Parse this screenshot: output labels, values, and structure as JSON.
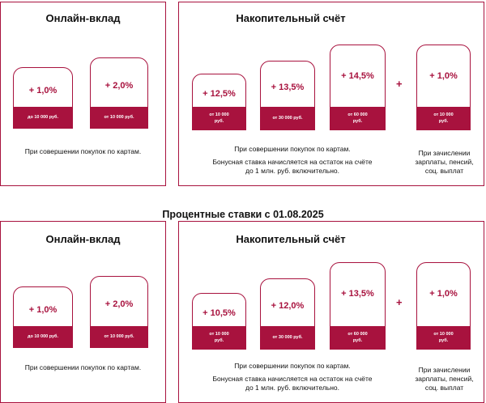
{
  "top": {
    "deposit": {
      "title": "Онлайн-вклад",
      "cards": [
        {
          "rate": "+ 1,0%",
          "band": "до 10 000 руб."
        },
        {
          "rate": "+ 2,0%",
          "band": "от 10 000 руб."
        }
      ],
      "note": "При совершении покупок по картам."
    },
    "savings": {
      "title": "Накопительный счёт",
      "cards": [
        {
          "rate": "+ 12,5%",
          "band_l1": "от 10 000",
          "band_l2": "руб."
        },
        {
          "rate": "+ 13,5%",
          "band_l1": "от 30 000 руб.",
          "band_l2": ""
        },
        {
          "rate": "+ 14,5%",
          "band_l1": "от 60 000",
          "band_l2": "руб."
        }
      ],
      "plus": "+",
      "extra_card": {
        "rate": "+ 1,0%",
        "band_l1": "от 10 000",
        "band_l2": "руб."
      },
      "note_l1": "При совершении покупок по картам.",
      "note_l2": "Бонусная ставка начисляется на остаток на счёте",
      "note_l3": "до 1 млн. руб. включительно.",
      "extra_note_l1": "При зачислении",
      "extra_note_l2": "зарплаты, пенсий,",
      "extra_note_l3": "соц. выплат"
    }
  },
  "heading": "Процентные ставки с 01.08.2025",
  "bottom": {
    "deposit": {
      "title": "Онлайн-вклад",
      "cards": [
        {
          "rate": "+ 1,0%",
          "band": "до 10 000 руб."
        },
        {
          "rate": "+ 2,0%",
          "band": "от 10 000 руб."
        }
      ],
      "note": "При совершении покупок по картам."
    },
    "savings": {
      "title": "Накопительный счёт",
      "cards": [
        {
          "rate": "+ 10,5%",
          "band_l1": "от 10 000",
          "band_l2": "руб."
        },
        {
          "rate": "+ 12,0%",
          "band_l1": "от 30 000 руб.",
          "band_l2": ""
        },
        {
          "rate": "+ 13,5%",
          "band_l1": "от 60 000",
          "band_l2": "руб."
        }
      ],
      "plus": "+",
      "extra_card": {
        "rate": "+ 1,0%",
        "band_l1": "от 10 000",
        "band_l2": "руб."
      },
      "note_l1": "При совершении покупок по картам.",
      "note_l2": "Бонусная ставка начисляется на остаток на счёте",
      "note_l3": "до 1 млн. руб. включительно.",
      "extra_note_l1": "При зачислении",
      "extra_note_l2": "зарплаты, пенсий,",
      "extra_note_l3": "соц. выплат"
    }
  }
}
